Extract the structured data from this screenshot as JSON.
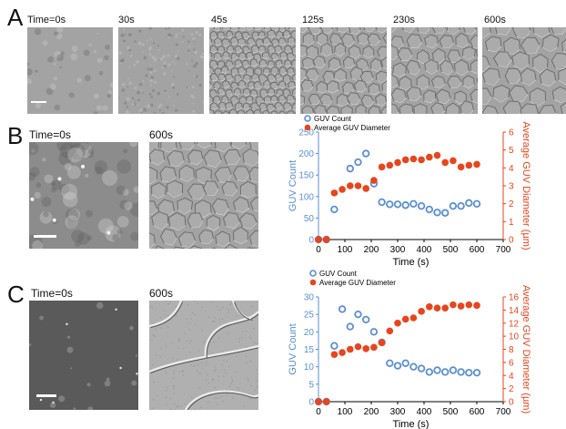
{
  "panels": {
    "A": {
      "letter": "A",
      "frames": [
        {
          "label": "Time=0s",
          "texture": "smooth"
        },
        {
          "label": "30s",
          "texture": "fine"
        },
        {
          "label": "45s",
          "texture": "cells-small"
        },
        {
          "label": "125s",
          "texture": "cells-medium"
        },
        {
          "label": "230s",
          "texture": "cells-medium"
        },
        {
          "label": "600s",
          "texture": "cells-large"
        }
      ]
    },
    "B": {
      "letter": "B",
      "frames": [
        {
          "label": "Time=0s",
          "texture": "rough"
        },
        {
          "label": "600s",
          "texture": "cells-medium"
        }
      ]
    },
    "C": {
      "letter": "C",
      "frames": [
        {
          "label": "Time=0s",
          "texture": "dark-smooth"
        },
        {
          "label": "600s",
          "texture": "cells-giant"
        }
      ]
    }
  },
  "chart_data": [
    {
      "type": "scatter",
      "panel": "B",
      "legend": [
        "GUV Count",
        "Average GUV Diameter"
      ],
      "legend_position": "top-left",
      "xlabel": "Time (s)",
      "ylabel": "GUV Count",
      "y2label": "Average GUV Diameter (µm)",
      "xlim": [
        0,
        700
      ],
      "ylim": [
        0,
        250
      ],
      "y2lim": [
        0,
        6
      ],
      "xticks": [
        0,
        100,
        200,
        300,
        400,
        500,
        600,
        700
      ],
      "yticks": [
        0,
        50,
        100,
        150,
        200,
        250
      ],
      "y2ticks": [
        0,
        1,
        2,
        3,
        4,
        5,
        6
      ],
      "colors": {
        "count": "#5a8fd0",
        "diameter": "#e8451c"
      },
      "series": [
        {
          "name": "GUV Count",
          "axis": "left",
          "marker": "open-circle",
          "x": [
            0,
            30,
            60,
            120,
            150,
            180,
            210,
            240,
            270,
            300,
            330,
            360,
            390,
            420,
            450,
            480,
            510,
            540,
            570,
            600
          ],
          "y": [
            0,
            0,
            70,
            165,
            180,
            200,
            130,
            87,
            82,
            82,
            80,
            83,
            78,
            70,
            63,
            62,
            78,
            78,
            85,
            83
          ]
        },
        {
          "name": "Average GUV Diameter",
          "axis": "right",
          "marker": "filled-circle",
          "x": [
            0,
            30,
            60,
            90,
            120,
            150,
            180,
            210,
            240,
            270,
            300,
            330,
            360,
            390,
            420,
            450,
            480,
            510,
            540,
            570,
            600
          ],
          "y": [
            0,
            0,
            2.6,
            2.8,
            3.0,
            3.0,
            2.85,
            3.3,
            4.05,
            4.15,
            4.3,
            4.45,
            4.5,
            4.45,
            4.6,
            4.7,
            4.3,
            4.4,
            4.05,
            4.15,
            4.2
          ]
        }
      ]
    },
    {
      "type": "scatter",
      "panel": "C",
      "legend": [
        "GUV Count",
        "Average GUV Diameter"
      ],
      "legend_position": "top-left",
      "xlabel": "Time (s)",
      "ylabel": "GUV Count",
      "y2label": "Average GUV Diameter (µm)",
      "xlim": [
        0,
        700
      ],
      "ylim": [
        0,
        30
      ],
      "y2lim": [
        0,
        16
      ],
      "xticks": [
        0,
        100,
        200,
        300,
        400,
        500,
        600,
        700
      ],
      "yticks": [
        0,
        5,
        10,
        15,
        20,
        25,
        30
      ],
      "y2ticks": [
        0,
        2,
        4,
        6,
        8,
        10,
        12,
        14,
        16
      ],
      "colors": {
        "count": "#5a8fd0",
        "diameter": "#e8451c"
      },
      "series": [
        {
          "name": "GUV Count",
          "axis": "left",
          "marker": "open-circle",
          "x": [
            0,
            30,
            60,
            90,
            120,
            150,
            180,
            210,
            240,
            270,
            300,
            330,
            360,
            390,
            420,
            450,
            480,
            510,
            540,
            570,
            600
          ],
          "y": [
            0,
            0,
            16,
            26.5,
            21.5,
            25,
            23.5,
            20,
            17,
            11,
            10.3,
            11,
            10,
            9.5,
            8.5,
            9,
            8.5,
            9,
            8.5,
            8.3,
            8.3
          ]
        },
        {
          "name": "Average GUV Diameter",
          "axis": "right",
          "marker": "filled-circle",
          "x": [
            0,
            30,
            60,
            90,
            120,
            150,
            180,
            210,
            240,
            270,
            300,
            330,
            360,
            390,
            420,
            450,
            480,
            510,
            540,
            570,
            600
          ],
          "y": [
            0,
            0,
            7.2,
            7.5,
            8.0,
            8.4,
            8.1,
            8.3,
            9.0,
            10.8,
            12.0,
            12.6,
            12.8,
            13.8,
            14.5,
            14.3,
            14.3,
            14.8,
            14.6,
            14.8,
            14.7
          ]
        }
      ]
    }
  ]
}
